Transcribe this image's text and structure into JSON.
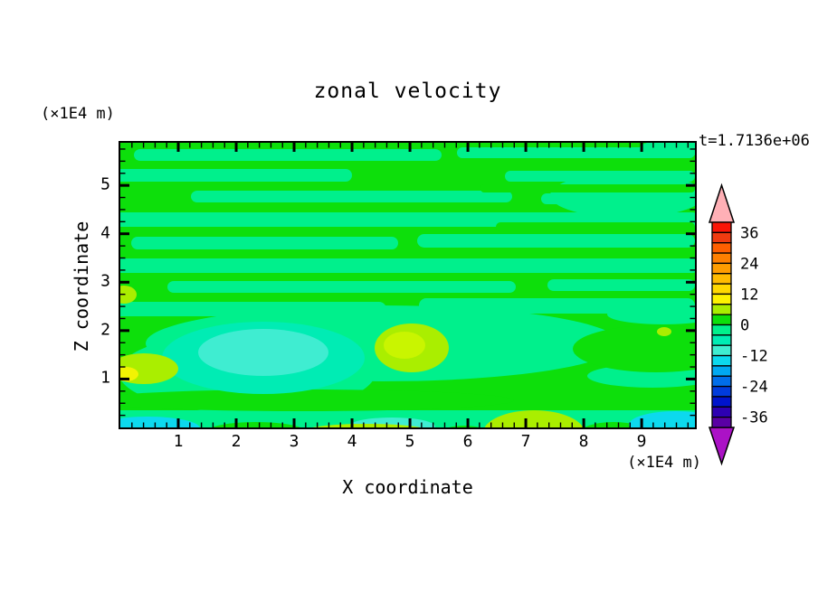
{
  "chart_data": {
    "type": "heatmap",
    "title": "zonal velocity",
    "annotation": "t=1.7136e+06",
    "xlabel": "X coordinate",
    "ylabel": "Z coordinate",
    "x_unit": "(×1E4 m)",
    "y_unit": "(×1E4 m)",
    "xlim": [
      0,
      9.92
    ],
    "ylim": [
      0,
      5.88
    ],
    "x_major_ticks": [
      "1",
      "2",
      "3",
      "4",
      "5",
      "6",
      "7",
      "8",
      "9"
    ],
    "x_minor_step": 0.2,
    "y_major_ticks": [
      "1",
      "2",
      "3",
      "4",
      "5"
    ],
    "y_minor_step": 0.25,
    "grid": false,
    "contour_interval": 4,
    "levels_min": -40,
    "levels_max": 40,
    "colorbar_ticks": [
      {
        "label": "36",
        "value": 36
      },
      {
        "label": "24",
        "value": 24
      },
      {
        "label": "12",
        "value": 12
      },
      {
        "label": "0",
        "value": 0
      },
      {
        "label": "-12",
        "value": -12
      },
      {
        "label": "-24",
        "value": -24
      },
      {
        "label": "-36",
        "value": -36
      }
    ],
    "colorbar_colors_top_to_bottom": [
      "#fb1507",
      "#f03b10",
      "#ff5f00",
      "#ff8000",
      "#ff9d00",
      "#ffbb00",
      "#ffd800",
      "#fdf200",
      "#aaee00",
      "#0ddf0b",
      "#00f08c",
      "#00ecb4",
      "#3fedd1",
      "#0cd9ee",
      "#00a9f2",
      "#006eea",
      "#003cdc",
      "#0014cc",
      "#2d00b2",
      "#5a00a4"
    ],
    "over_arrow_color": "#ffb0b6",
    "under_arrow_color": "#ab12c6",
    "band_colors": {
      "green": "#0ddf0b",
      "spring": "#00f08c",
      "mint": "#00ecb4",
      "aqua": "#3fedd1",
      "cyan": "#0cd9ee",
      "chartreuse": "#aaee00",
      "chartreuse_bright": "#c9f500",
      "yellow": "#f2f303"
    },
    "field_summary": "Zonal velocity field mostly between -4 and +4: wavy horizontal bands of 0..4 (green) and -4..0 (spring green) fill the upper two thirds; a lower-left pocket reaches -12 (mint/aqua core near X=2-3.5, Z=1-2); chartreuse/yellow pockets reach +8..+12 near the left wall (Z≈1) and near X=4.5-5.5, Z≈1.5; cyan patches (-16..-12) and a chartreuse dome hug the bottom boundary."
  }
}
